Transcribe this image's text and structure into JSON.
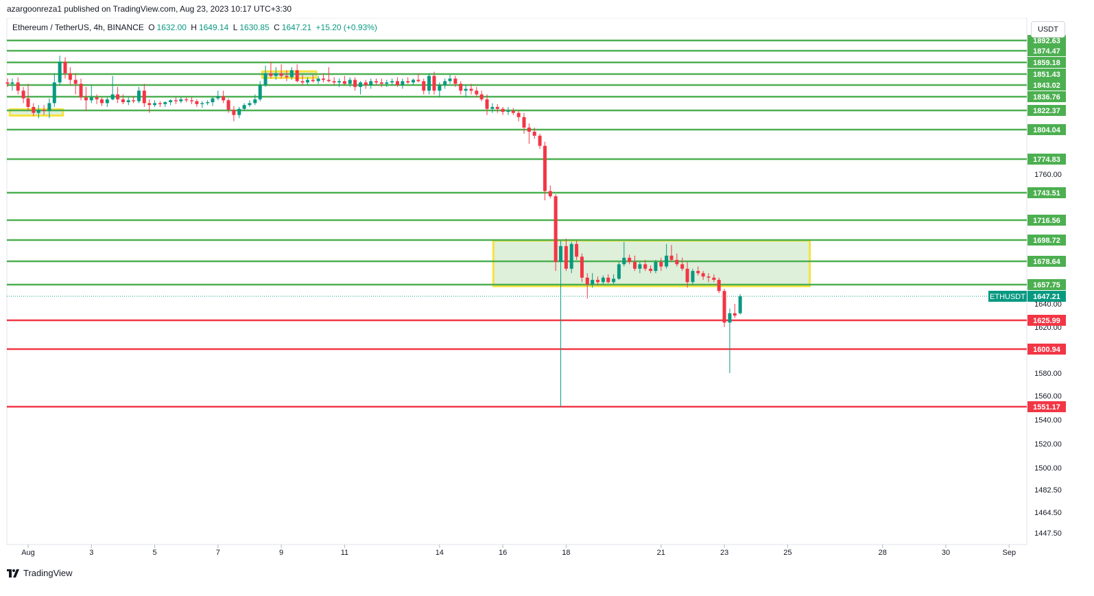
{
  "publish_info": "azargoonreza1 published on TradingView.com, Aug 23, 2023 10:17 UTC+3:30",
  "header": {
    "symbol": "Ethereum / TetherUS, 4h, BINANCE",
    "o_label": "O",
    "o_value": "1632.00",
    "h_label": "H",
    "h_value": "1649.14",
    "l_label": "L",
    "l_value": "1630.85",
    "c_label": "C",
    "c_value": "1647.21",
    "change": "+15.20 (+0.93%)"
  },
  "currency": "USDT",
  "footer": {
    "brand": "TradingView"
  },
  "colors": {
    "green": "#4caf50",
    "red": "#f23645",
    "up": "#089981",
    "down": "#f23645",
    "yellow": "#f5e33b",
    "zone": "#d8ecd4"
  },
  "chart_data": {
    "type": "candlestick",
    "symbol_badge": "ETHUSDT",
    "last_price": 1647.21,
    "y_axis_ticks": [
      {
        "label": "1760.00",
        "value": 1760
      },
      {
        "label": "1640.00",
        "value": 1640
      },
      {
        "label": "1620.00",
        "value": 1620
      },
      {
        "label": "1580.00",
        "value": 1580
      },
      {
        "label": "1560.00",
        "value": 1560
      },
      {
        "label": "1540.00",
        "value": 1540
      },
      {
        "label": "1520.00",
        "value": 1520
      },
      {
        "label": "1500.00",
        "value": 1500
      },
      {
        "label": "1482.50",
        "value": 1482.5
      },
      {
        "label": "1464.50",
        "value": 1464.5
      },
      {
        "label": "1447.50",
        "value": 1447.5
      }
    ],
    "x_axis_ticks": [
      {
        "label": "Aug",
        "day": 1
      },
      {
        "label": "3",
        "day": 3
      },
      {
        "label": "5",
        "day": 5
      },
      {
        "label": "7",
        "day": 7
      },
      {
        "label": "9",
        "day": 9
      },
      {
        "label": "11",
        "day": 11
      },
      {
        "label": "14",
        "day": 14
      },
      {
        "label": "16",
        "day": 16
      },
      {
        "label": "18",
        "day": 18
      },
      {
        "label": "21",
        "day": 21
      },
      {
        "label": "23",
        "day": 23
      },
      {
        "label": "25",
        "day": 25
      },
      {
        "label": "28",
        "day": 28
      },
      {
        "label": "30",
        "day": 30
      },
      {
        "label": "Sep",
        "day": 32
      }
    ],
    "levels": [
      {
        "label": "1892.63",
        "value": 1892.63,
        "color": "green"
      },
      {
        "label": "1874.47",
        "value": 1874.47,
        "color": "green"
      },
      {
        "label": "1859.18",
        "value": 1859.18,
        "color": "green"
      },
      {
        "label": "1851.43",
        "value": 1851.43,
        "color": "green"
      },
      {
        "label": "1843.02",
        "value": 1843.02,
        "color": "green"
      },
      {
        "label": "1836.76",
        "value": 1836.76,
        "color": "green"
      },
      {
        "label": "1822.37",
        "value": 1822.37,
        "color": "green"
      },
      {
        "label": "1804.04",
        "value": 1804.04,
        "color": "green"
      },
      {
        "label": "1774.83",
        "value": 1774.83,
        "color": "green"
      },
      {
        "label": "1743.51",
        "value": 1743.51,
        "color": "green"
      },
      {
        "label": "1716.56",
        "value": 1716.56,
        "color": "green"
      },
      {
        "label": "1698.72",
        "value": 1698.72,
        "color": "green"
      },
      {
        "label": "1678.64",
        "value": 1678.64,
        "color": "green"
      },
      {
        "label": "1657.75",
        "value": 1657.75,
        "color": "green"
      },
      {
        "label": "1625.99",
        "value": 1625.99,
        "color": "red"
      },
      {
        "label": "1600.94",
        "value": 1600.94,
        "color": "red"
      },
      {
        "label": "1551.17",
        "value": 1551.17,
        "color": "red"
      }
    ],
    "zones": [
      {
        "x0": 15.7,
        "x1": 25.7,
        "y0": 1656.4,
        "y1": 1698.3,
        "fill": "zone",
        "stroke": "yellow"
      },
      {
        "x0": 0.42,
        "x1": 2.1,
        "y0": 1817.5,
        "y1": 1823.5,
        "fill": "zone",
        "stroke": "yellow"
      },
      {
        "x0": 8.4,
        "x1": 10.1,
        "y0": 1848.5,
        "y1": 1853.2,
        "fill": "zone",
        "stroke": "yellow"
      }
    ],
    "candles": [
      [
        0.35,
        1845,
        1848,
        1842,
        1844
      ],
      [
        0.5,
        1844,
        1848,
        1840,
        1845
      ],
      [
        0.68,
        1845,
        1849,
        1838,
        1840
      ],
      [
        0.85,
        1840,
        1842,
        1830,
        1835
      ],
      [
        1.0,
        1835,
        1844,
        1822,
        1826
      ],
      [
        1.17,
        1826,
        1830,
        1817,
        1820
      ],
      [
        1.33,
        1820,
        1828,
        1815,
        1823
      ],
      [
        1.5,
        1823,
        1828,
        1818,
        1822
      ],
      [
        1.67,
        1822,
        1835,
        1815,
        1830
      ],
      [
        1.83,
        1830,
        1852,
        1826,
        1845
      ],
      [
        2.0,
        1845,
        1868,
        1843,
        1860
      ],
      [
        2.17,
        1860,
        1866,
        1848,
        1852
      ],
      [
        2.33,
        1852,
        1856,
        1843,
        1847
      ],
      [
        2.5,
        1847,
        1852,
        1838,
        1844
      ],
      [
        2.67,
        1844,
        1848,
        1833,
        1836
      ],
      [
        2.83,
        1836,
        1842,
        1822,
        1833
      ],
      [
        3.0,
        1833,
        1843,
        1830,
        1836
      ],
      [
        3.17,
        1836,
        1838,
        1829,
        1834
      ],
      [
        3.33,
        1834,
        1836,
        1827,
        1830
      ],
      [
        3.5,
        1830,
        1836,
        1826,
        1834
      ],
      [
        3.67,
        1834,
        1850,
        1833,
        1838
      ],
      [
        3.83,
        1838,
        1842,
        1830,
        1834
      ],
      [
        4.0,
        1834,
        1838,
        1829,
        1831
      ],
      [
        4.17,
        1831,
        1836,
        1828,
        1833
      ],
      [
        4.33,
        1833,
        1837,
        1830,
        1832
      ],
      [
        4.5,
        1832,
        1842,
        1830,
        1840
      ],
      [
        4.67,
        1840,
        1844,
        1826,
        1830
      ],
      [
        4.83,
        1830,
        1834,
        1820,
        1828
      ],
      [
        5.0,
        1828,
        1833,
        1826,
        1830
      ],
      [
        5.17,
        1830,
        1832,
        1826,
        1829
      ],
      [
        5.33,
        1829,
        1832,
        1826,
        1831
      ],
      [
        5.5,
        1831,
        1834,
        1828,
        1833
      ],
      [
        5.67,
        1833,
        1836,
        1829,
        1832
      ],
      [
        5.83,
        1832,
        1836,
        1830,
        1834
      ],
      [
        6.0,
        1834,
        1836,
        1831,
        1833
      ],
      [
        6.17,
        1833,
        1836,
        1829,
        1832
      ],
      [
        6.33,
        1832,
        1834,
        1826,
        1829
      ],
      [
        6.5,
        1829,
        1832,
        1825,
        1830
      ],
      [
        6.67,
        1830,
        1833,
        1828,
        1831
      ],
      [
        6.83,
        1831,
        1836,
        1827,
        1835
      ],
      [
        7.0,
        1835,
        1840,
        1833,
        1837
      ],
      [
        7.17,
        1837,
        1840,
        1830,
        1833
      ],
      [
        7.33,
        1833,
        1835,
        1820,
        1823
      ],
      [
        7.5,
        1823,
        1827,
        1812,
        1818
      ],
      [
        7.67,
        1818,
        1826,
        1815,
        1824
      ],
      [
        7.83,
        1824,
        1830,
        1822,
        1828
      ],
      [
        8.0,
        1828,
        1833,
        1826,
        1830
      ],
      [
        8.17,
        1830,
        1838,
        1828,
        1834
      ],
      [
        8.33,
        1834,
        1846,
        1832,
        1843
      ],
      [
        8.5,
        1843,
        1857,
        1842,
        1852
      ],
      [
        8.67,
        1852,
        1860,
        1848,
        1850
      ],
      [
        8.83,
        1850,
        1856,
        1847,
        1852
      ],
      [
        9.0,
        1852,
        1858,
        1848,
        1850
      ],
      [
        9.17,
        1850,
        1854,
        1846,
        1849
      ],
      [
        9.33,
        1849,
        1856,
        1847,
        1854
      ],
      [
        9.5,
        1854,
        1858,
        1845,
        1846
      ],
      [
        9.67,
        1846,
        1851,
        1843,
        1845
      ],
      [
        9.83,
        1845,
        1849,
        1843,
        1847
      ],
      [
        10.0,
        1847,
        1851,
        1845,
        1846
      ],
      [
        10.17,
        1846,
        1850,
        1844,
        1848
      ],
      [
        10.33,
        1848,
        1852,
        1845,
        1847
      ],
      [
        10.5,
        1847,
        1856,
        1845,
        1846
      ],
      [
        10.67,
        1846,
        1849,
        1843,
        1845
      ],
      [
        10.83,
        1845,
        1848,
        1842,
        1846
      ],
      [
        11.0,
        1846,
        1850,
        1843,
        1844
      ],
      [
        11.17,
        1844,
        1849,
        1842,
        1847
      ],
      [
        11.33,
        1847,
        1849,
        1840,
        1842
      ],
      [
        11.5,
        1842,
        1846,
        1838,
        1845
      ],
      [
        11.67,
        1845,
        1847,
        1841,
        1843
      ],
      [
        11.83,
        1843,
        1848,
        1841,
        1846
      ],
      [
        12.0,
        1846,
        1848,
        1843,
        1845
      ],
      [
        12.17,
        1845,
        1848,
        1842,
        1844
      ],
      [
        12.33,
        1844,
        1847,
        1842,
        1845
      ],
      [
        12.5,
        1845,
        1848,
        1843,
        1846
      ],
      [
        12.67,
        1846,
        1849,
        1842,
        1843
      ],
      [
        12.83,
        1843,
        1848,
        1841,
        1846
      ],
      [
        13.0,
        1846,
        1849,
        1844,
        1845
      ],
      [
        13.17,
        1845,
        1848,
        1843,
        1847
      ],
      [
        13.33,
        1847,
        1852,
        1845,
        1846
      ],
      [
        13.5,
        1846,
        1848,
        1838,
        1840
      ],
      [
        13.67,
        1840,
        1852,
        1838,
        1850
      ],
      [
        13.83,
        1850,
        1853,
        1838,
        1840
      ],
      [
        14.0,
        1840,
        1845,
        1836,
        1843
      ],
      [
        14.17,
        1843,
        1848,
        1841,
        1846
      ],
      [
        14.33,
        1846,
        1851,
        1844,
        1848
      ],
      [
        14.5,
        1848,
        1850,
        1842,
        1844
      ],
      [
        14.67,
        1844,
        1846,
        1838,
        1840
      ],
      [
        14.83,
        1840,
        1843,
        1836,
        1841
      ],
      [
        15.0,
        1841,
        1844,
        1838,
        1840
      ],
      [
        15.17,
        1840,
        1842,
        1836,
        1838
      ],
      [
        15.33,
        1838,
        1840,
        1832,
        1834
      ],
      [
        15.5,
        1834,
        1838,
        1818,
        1824
      ],
      [
        15.67,
        1824,
        1830,
        1820,
        1826
      ],
      [
        15.83,
        1826,
        1829,
        1820,
        1824
      ],
      [
        16.0,
        1824,
        1826,
        1818,
        1821
      ],
      [
        16.17,
        1821,
        1826,
        1818,
        1822
      ],
      [
        16.33,
        1822,
        1825,
        1818,
        1820
      ],
      [
        16.5,
        1820,
        1822,
        1812,
        1816
      ],
      [
        16.67,
        1816,
        1820,
        1800,
        1806
      ],
      [
        16.83,
        1806,
        1810,
        1790,
        1802
      ],
      [
        17.0,
        1802,
        1806,
        1795,
        1798
      ],
      [
        17.17,
        1798,
        1800,
        1785,
        1788
      ],
      [
        17.33,
        1788,
        1792,
        1736,
        1745
      ],
      [
        17.5,
        1745,
        1750,
        1738,
        1740
      ],
      [
        17.67,
        1740,
        1742,
        1670,
        1678
      ],
      [
        17.83,
        1678,
        1698,
        1551,
        1693
      ],
      [
        18.0,
        1693,
        1700,
        1670,
        1672
      ],
      [
        18.17,
        1672,
        1697,
        1668,
        1695
      ],
      [
        18.33,
        1695,
        1698,
        1680,
        1683
      ],
      [
        18.5,
        1683,
        1686,
        1660,
        1664
      ],
      [
        18.67,
        1664,
        1668,
        1645,
        1658
      ],
      [
        18.83,
        1658,
        1668,
        1655,
        1662
      ],
      [
        19.0,
        1662,
        1665,
        1657,
        1660
      ],
      [
        19.17,
        1660,
        1666,
        1658,
        1664
      ],
      [
        19.33,
        1664,
        1667,
        1659,
        1660
      ],
      [
        19.5,
        1660,
        1667,
        1658,
        1663
      ],
      [
        19.67,
        1663,
        1678,
        1662,
        1676
      ],
      [
        19.83,
        1676,
        1697,
        1674,
        1682
      ],
      [
        20.0,
        1682,
        1685,
        1676,
        1678
      ],
      [
        20.17,
        1678,
        1684,
        1670,
        1672
      ],
      [
        20.33,
        1672,
        1678,
        1668,
        1676
      ],
      [
        20.5,
        1676,
        1680,
        1670,
        1672
      ],
      [
        20.67,
        1672,
        1675,
        1668,
        1670
      ],
      [
        20.83,
        1670,
        1680,
        1668,
        1678
      ],
      [
        21.0,
        1678,
        1682,
        1670,
        1674
      ],
      [
        21.17,
        1674,
        1695,
        1672,
        1684
      ],
      [
        21.33,
        1684,
        1694,
        1678,
        1680
      ],
      [
        21.5,
        1680,
        1686,
        1674,
        1676
      ],
      [
        21.67,
        1676,
        1682,
        1670,
        1672
      ],
      [
        21.83,
        1672,
        1678,
        1655,
        1660
      ],
      [
        22.0,
        1660,
        1672,
        1658,
        1670
      ],
      [
        22.17,
        1670,
        1674,
        1666,
        1668
      ],
      [
        22.33,
        1668,
        1670,
        1662,
        1665
      ],
      [
        22.5,
        1665,
        1668,
        1660,
        1664
      ],
      [
        22.67,
        1664,
        1667,
        1660,
        1662
      ],
      [
        22.83,
        1662,
        1664,
        1650,
        1652
      ],
      [
        23.0,
        1652,
        1654,
        1620,
        1624
      ],
      [
        23.17,
        1624,
        1636,
        1580,
        1632
      ],
      [
        23.33,
        1632,
        1640,
        1628,
        1630
      ],
      [
        23.5,
        1632,
        1649.14,
        1630.85,
        1647.21
      ]
    ]
  }
}
